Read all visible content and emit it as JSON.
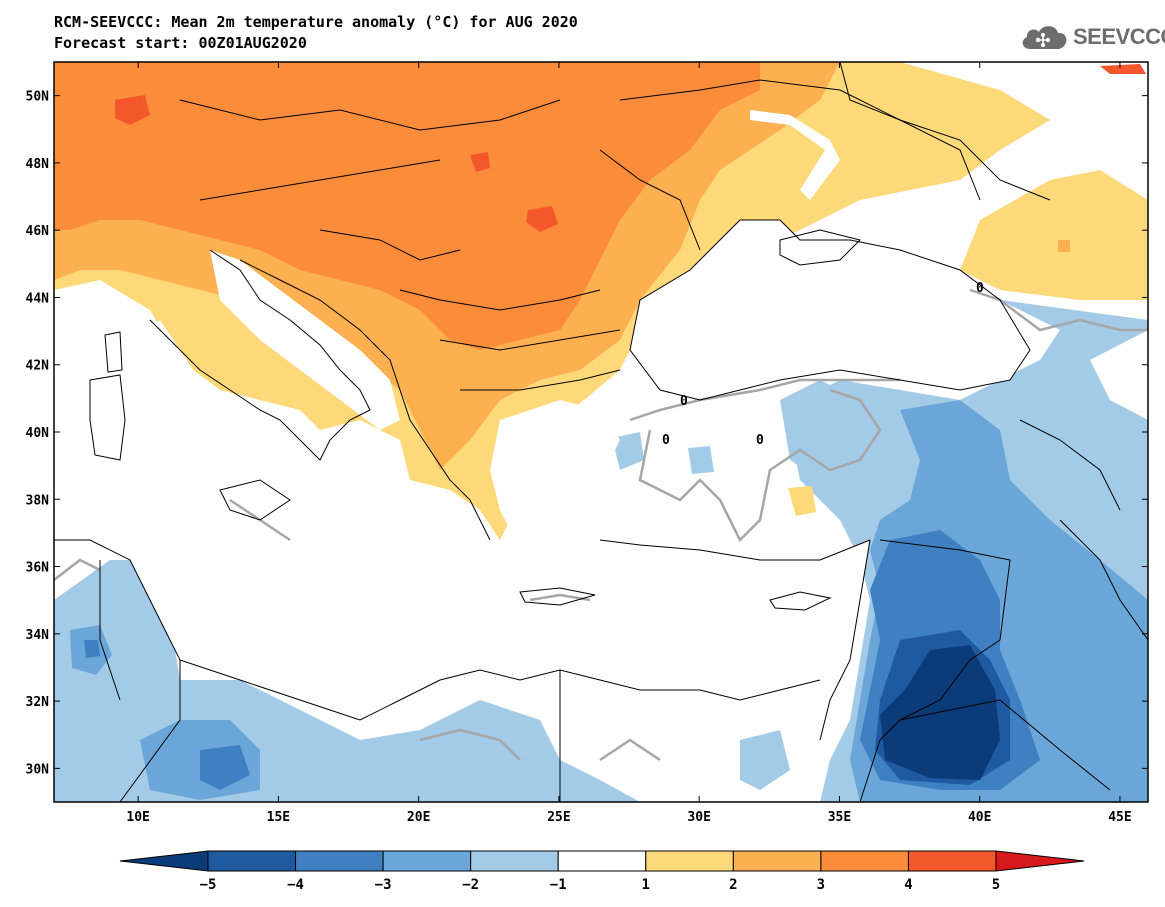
{
  "header": {
    "title": "RCM-SEEVCCC: Mean 2m temperature anomaly (°C) for AUG 2020",
    "subtitle": "Forecast start: 00Z01AUG2020"
  },
  "logo": {
    "text": "SEEVCCC",
    "icon": "cloud-icon",
    "color": "#6d6d6d"
  },
  "map": {
    "lon_range": [
      7,
      46
    ],
    "lat_range": [
      29,
      51
    ],
    "x_ticks": [
      {
        "value": 10,
        "label": "10E"
      },
      {
        "value": 15,
        "label": "15E"
      },
      {
        "value": 20,
        "label": "20E"
      },
      {
        "value": 25,
        "label": "25E"
      },
      {
        "value": 30,
        "label": "30E"
      },
      {
        "value": 35,
        "label": "35E"
      },
      {
        "value": 40,
        "label": "40E"
      },
      {
        "value": 45,
        "label": "45E"
      }
    ],
    "y_ticks": [
      {
        "value": 50,
        "label": "50N"
      },
      {
        "value": 48,
        "label": "48N"
      },
      {
        "value": 46,
        "label": "46N"
      },
      {
        "value": 44,
        "label": "44N"
      },
      {
        "value": 42,
        "label": "42N"
      },
      {
        "value": 40,
        "label": "40N"
      },
      {
        "value": 38,
        "label": "38N"
      },
      {
        "value": 36,
        "label": "36N"
      },
      {
        "value": 34,
        "label": "34N"
      },
      {
        "value": 32,
        "label": "32N"
      },
      {
        "value": 30,
        "label": "30N"
      }
    ],
    "zero_contour_label": "0"
  },
  "colorbar": {
    "ticks": [
      "−5",
      "−4",
      "−3",
      "−2",
      "−1",
      "1",
      "2",
      "3",
      "4",
      "5"
    ],
    "low_extend_color": "#0b3b78",
    "high_extend_color": "#d7191c",
    "bins": [
      {
        "range": [
          -5,
          -4
        ],
        "color": "#1f5aa0"
      },
      {
        "range": [
          -4,
          -3
        ],
        "color": "#3f80c2"
      },
      {
        "range": [
          -3,
          -2
        ],
        "color": "#6aa6d8"
      },
      {
        "range": [
          -2,
          -1
        ],
        "color": "#a3cbe7"
      },
      {
        "range": [
          -1,
          1
        ],
        "color": "#ffffff"
      },
      {
        "range": [
          1,
          2
        ],
        "color": "#fed97a"
      },
      {
        "range": [
          2,
          3
        ],
        "color": "#fdb04f"
      },
      {
        "range": [
          3,
          4
        ],
        "color": "#fb8c3a"
      },
      {
        "range": [
          4,
          5
        ],
        "color": "#f4572c"
      }
    ]
  }
}
